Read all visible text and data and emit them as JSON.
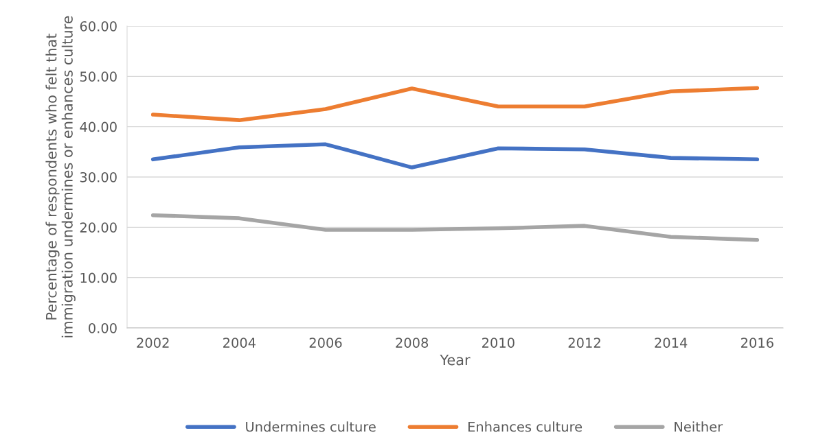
{
  "chart_data": {
    "type": "line",
    "xlabel": "Year",
    "ylabel": "Percentage of respondents who felt that\nimmigration undermines or enhances culture",
    "categories": [
      "2002",
      "2004",
      "2006",
      "2008",
      "2010",
      "2012",
      "2014",
      "2016"
    ],
    "series": [
      {
        "name": "Undermines culture",
        "color": "#4472c4",
        "values": [
          33.5,
          35.9,
          36.5,
          31.9,
          35.7,
          35.5,
          33.8,
          33.5
        ]
      },
      {
        "name": "Enhances culture",
        "color": "#ed7d31",
        "values": [
          42.4,
          41.3,
          43.5,
          47.6,
          44.0,
          44.0,
          47.0,
          47.7
        ]
      },
      {
        "name": "Neither",
        "color": "#a5a5a5",
        "values": [
          22.4,
          21.8,
          19.5,
          19.5,
          19.8,
          20.3,
          18.1,
          17.5
        ]
      }
    ],
    "ylim": [
      0,
      60
    ],
    "yticks": [
      {
        "value": 0,
        "label": "0.00"
      },
      {
        "value": 10,
        "label": "10.00"
      },
      {
        "value": 20,
        "label": "20.00"
      },
      {
        "value": 30,
        "label": "30.00"
      },
      {
        "value": 40,
        "label": "40.00"
      },
      {
        "value": 50,
        "label": "50.00"
      },
      {
        "value": 60,
        "label": "60.00"
      }
    ],
    "grid": "y",
    "legend": "bottom",
    "marker": "none",
    "line_style": "solid"
  }
}
